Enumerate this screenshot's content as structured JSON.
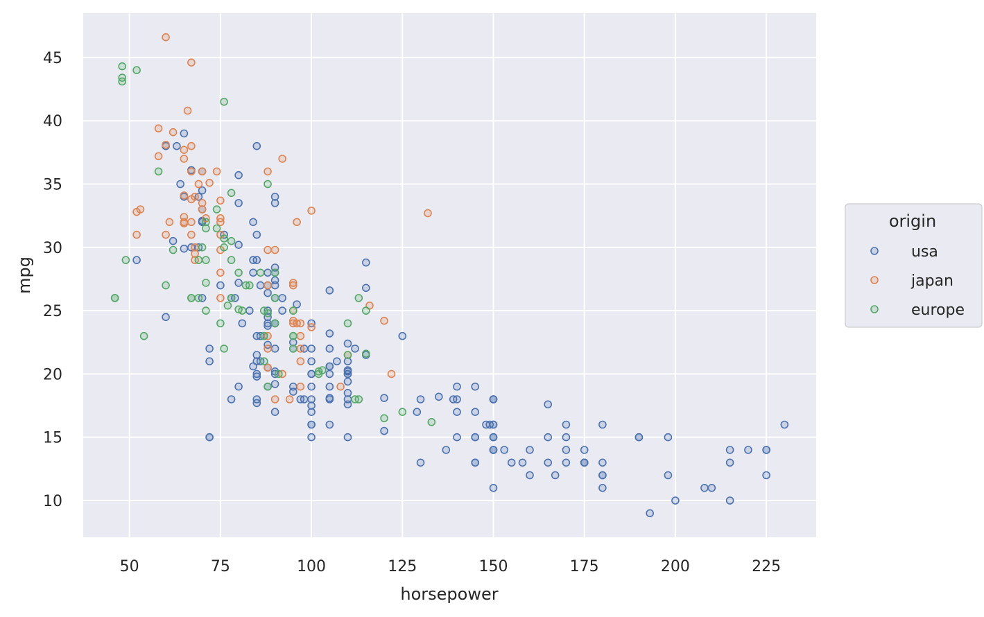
{
  "chart_data": {
    "type": "scatter",
    "xlabel": "horsepower",
    "ylabel": "mpg",
    "xlim": [
      37.3,
      238.7
    ],
    "ylim": [
      7.1,
      48.5
    ],
    "xticks": [
      50,
      75,
      100,
      125,
      150,
      175,
      200,
      225
    ],
    "yticks": [
      10,
      15,
      20,
      25,
      30,
      35,
      40,
      45
    ],
    "grid": true,
    "legend": {
      "title": "origin",
      "placement": "right"
    },
    "series": [
      {
        "name": "usa",
        "color": "#4c72b0",
        "points": [
          [
            130,
            18
          ],
          [
            165,
            15
          ],
          [
            150,
            18
          ],
          [
            150,
            16
          ],
          [
            140,
            17
          ],
          [
            198,
            15
          ],
          [
            220,
            14
          ],
          [
            215,
            14
          ],
          [
            225,
            14
          ],
          [
            190,
            15
          ],
          [
            170,
            15
          ],
          [
            160,
            14
          ],
          [
            150,
            15
          ],
          [
            225,
            14
          ],
          [
            95,
            22
          ],
          [
            97,
            18
          ],
          [
            85,
            21
          ],
          [
            88,
            27
          ],
          [
            100,
            24
          ],
          [
            105,
            20
          ],
          [
            100,
            21
          ],
          [
            88,
            24
          ],
          [
            100,
            20
          ],
          [
            165,
            13
          ],
          [
            175,
            13
          ],
          [
            153,
            14
          ],
          [
            150,
            15
          ],
          [
            180,
            13
          ],
          [
            170,
            14
          ],
          [
            175,
            13
          ],
          [
            110,
            18
          ],
          [
            72,
            21
          ],
          [
            100,
            22
          ],
          [
            88,
            19
          ],
          [
            86,
            23
          ],
          [
            90,
            28
          ],
          [
            70,
            33
          ],
          [
            76,
            31
          ],
          [
            65,
            34
          ],
          [
            69,
            34
          ],
          [
            60,
            38
          ],
          [
            90,
            24
          ],
          [
            88,
            25
          ],
          [
            90,
            24
          ],
          [
            78,
            26
          ],
          [
            98,
            22
          ],
          [
            92,
            26
          ],
          [
            88,
            28
          ],
          [
            85,
            29
          ],
          [
            145,
            13
          ],
          [
            150,
            15
          ],
          [
            193,
            9
          ],
          [
            200,
            10
          ],
          [
            230,
            16
          ],
          [
            215,
            10
          ],
          [
            210,
            11
          ],
          [
            208,
            11
          ],
          [
            198,
            12
          ],
          [
            180,
            11
          ],
          [
            167,
            12
          ],
          [
            225,
            12
          ],
          [
            215,
            13
          ],
          [
            155,
            13
          ],
          [
            150,
            14
          ],
          [
            145,
            15
          ],
          [
            130,
            13
          ],
          [
            150,
            16
          ],
          [
            140,
            15
          ],
          [
            158,
            13
          ],
          [
            170,
            16
          ],
          [
            180,
            16
          ],
          [
            149,
            16
          ],
          [
            145,
            17
          ],
          [
            139,
            18
          ],
          [
            140,
            18
          ],
          [
            145,
            19
          ],
          [
            150,
            18
          ],
          [
            140,
            19
          ],
          [
            175,
            14
          ],
          [
            150,
            14
          ],
          [
            137,
            14
          ],
          [
            129,
            17
          ],
          [
            148,
            16
          ],
          [
            150,
            14
          ],
          [
            150,
            18
          ],
          [
            190,
            15
          ],
          [
            165,
            17.6
          ],
          [
            110,
            20
          ],
          [
            105,
            19
          ],
          [
            100,
            19
          ],
          [
            100,
            18
          ],
          [
            95,
            19
          ],
          [
            90,
            20
          ],
          [
            105,
            20.6
          ],
          [
            85,
            21.5
          ],
          [
            84,
            28
          ],
          [
            90,
            26
          ],
          [
            92,
            25
          ],
          [
            90,
            27
          ],
          [
            70,
            32
          ],
          [
            63,
            38
          ],
          [
            65,
            39
          ],
          [
            70,
            34.5
          ],
          [
            80,
            33.5
          ],
          [
            84,
            32
          ],
          [
            85,
            31
          ],
          [
            90,
            28.4
          ],
          [
            90,
            27.4
          ],
          [
            96,
            25.5
          ],
          [
            88,
            26.4
          ],
          [
            110,
            20.2
          ],
          [
            110,
            17.6
          ],
          [
            115,
            26.8
          ],
          [
            115,
            28.8
          ],
          [
            105,
            26.6
          ],
          [
            110,
            18.5
          ],
          [
            105,
            18.1
          ],
          [
            120,
            15.5
          ],
          [
            145,
            15
          ],
          [
            100,
            15
          ],
          [
            100,
            16
          ],
          [
            110,
            15
          ],
          [
            90,
            17
          ],
          [
            85,
            18
          ],
          [
            80,
            19
          ],
          [
            72,
            15
          ],
          [
            72,
            15
          ],
          [
            110,
            20
          ],
          [
            125,
            23
          ],
          [
            105,
            23.2
          ],
          [
            105,
            22
          ],
          [
            70,
            36
          ],
          [
            64,
            35
          ],
          [
            69,
            30
          ],
          [
            62,
            30.5
          ],
          [
            67,
            36.1
          ],
          [
            65,
            29.9
          ],
          [
            80,
            30.2
          ],
          [
            84,
            29
          ],
          [
            88,
            23.8
          ],
          [
            90,
            19.2
          ],
          [
            85,
            17.7
          ],
          [
            100,
            17.5
          ],
          [
            115,
            21.5
          ],
          [
            110,
            22.4
          ],
          [
            110,
            20.3
          ],
          [
            105,
            16
          ],
          [
            100,
            16
          ],
          [
            90,
            22
          ],
          [
            88,
            20.5
          ],
          [
            87,
            23
          ],
          [
            86,
            21
          ],
          [
            81,
            24
          ],
          [
            83,
            25
          ],
          [
            84,
            20.6
          ],
          [
            88,
            24.5
          ],
          [
            86,
            27
          ],
          [
            90,
            33.5
          ],
          [
            90,
            34
          ],
          [
            78,
            18
          ],
          [
            112,
            22
          ],
          [
            110,
            21
          ],
          [
            105,
            20.6
          ],
          [
            85,
            20
          ],
          [
            79,
            26
          ],
          [
            75,
            27
          ],
          [
            70,
            26
          ],
          [
            107,
            21
          ],
          [
            52,
            29
          ],
          [
            60,
            24.5
          ],
          [
            72,
            22
          ],
          [
            105,
            18
          ],
          [
            100,
            20
          ],
          [
            85,
            23
          ],
          [
            95,
            22.5
          ],
          [
            80,
            35.7
          ],
          [
            85,
            38
          ],
          [
            80,
            27.2
          ],
          [
            88,
            22.3
          ],
          [
            70,
            32.1
          ],
          [
            67,
            30
          ],
          [
            90,
            20.2
          ],
          [
            85,
            19.8
          ],
          [
            95,
            18.6
          ],
          [
            110,
            19.4
          ],
          [
            135,
            18.2
          ],
          [
            120,
            18.1
          ],
          [
            100,
            17
          ],
          [
            98,
            18
          ],
          [
            180,
            12
          ],
          [
            180,
            12
          ],
          [
            170,
            13
          ],
          [
            175,
            13
          ],
          [
            150,
            11
          ],
          [
            145,
            13
          ],
          [
            160,
            12
          ]
        ]
      },
      {
        "name": "japan",
        "color": "#dd8452",
        "points": [
          [
            95,
            24
          ],
          [
            88,
            27
          ],
          [
            65,
            32
          ],
          [
            69,
            35
          ],
          [
            95,
            27
          ],
          [
            97,
            24
          ],
          [
            92,
            20
          ],
          [
            97,
            21
          ],
          [
            88,
            22
          ],
          [
            97,
            23
          ],
          [
            94,
            18
          ],
          [
            90,
            18
          ],
          [
            52,
            31
          ],
          [
            68,
            29
          ],
          [
            61,
            32
          ],
          [
            65,
            37
          ],
          [
            97,
            22
          ],
          [
            100,
            32.9
          ],
          [
            92,
            37
          ],
          [
            75,
            32
          ],
          [
            96,
            32
          ],
          [
            60,
            31
          ],
          [
            75,
            29.8
          ],
          [
            95,
            27.2
          ],
          [
            116,
            25.4
          ],
          [
            132,
            32.7
          ],
          [
            67,
            33.8
          ],
          [
            70,
            36
          ],
          [
            75,
            33.7
          ],
          [
            60,
            38.1
          ],
          [
            68,
            30
          ],
          [
            67,
            32
          ],
          [
            65,
            37.7
          ],
          [
            62,
            39.1
          ],
          [
            88,
            29.8
          ],
          [
            75,
            32.3
          ],
          [
            72,
            35.1
          ],
          [
            65,
            32.4
          ],
          [
            67,
            31
          ],
          [
            68,
            29.5
          ],
          [
            75,
            28
          ],
          [
            67,
            38
          ],
          [
            58,
            37.2
          ],
          [
            65,
            34.1
          ],
          [
            67,
            36
          ],
          [
            53,
            33
          ],
          [
            58,
            39.4
          ],
          [
            66,
            40.8
          ],
          [
            67,
            44.6
          ],
          [
            60,
            46.6
          ],
          [
            52,
            32.8
          ],
          [
            88,
            20.5
          ],
          [
            120,
            24.2
          ],
          [
            122,
            20
          ],
          [
            108,
            19
          ],
          [
            110,
            21.5
          ],
          [
            97,
            19
          ],
          [
            96,
            24
          ],
          [
            95,
            25
          ],
          [
            88,
            23
          ],
          [
            75,
            26
          ],
          [
            70,
            33.5
          ],
          [
            65,
            31.9
          ],
          [
            68,
            34
          ],
          [
            74,
            36
          ],
          [
            75,
            31
          ],
          [
            70,
            33
          ],
          [
            100,
            23.7
          ],
          [
            88,
            36
          ],
          [
            90,
            29.8
          ],
          [
            95,
            24.2
          ],
          [
            71,
            32.3
          ]
        ]
      },
      {
        "name": "europe",
        "color": "#55a868",
        "points": [
          [
            46,
            26
          ],
          [
            87,
            25
          ],
          [
            90,
            24
          ],
          [
            95,
            25
          ],
          [
            113,
            26
          ],
          [
            90,
            28
          ],
          [
            70,
            30
          ],
          [
            76,
            30
          ],
          [
            60,
            27
          ],
          [
            54,
            23
          ],
          [
            90,
            26
          ],
          [
            86,
            28
          ],
          [
            46,
            26
          ],
          [
            87,
            23
          ],
          [
            71,
            25
          ],
          [
            75,
            24
          ],
          [
            76,
            22
          ],
          [
            71,
            29
          ],
          [
            83,
            27
          ],
          [
            67,
            26
          ],
          [
            78,
            29
          ],
          [
            112,
            18
          ],
          [
            115,
            25
          ],
          [
            102,
            20
          ],
          [
            88,
            35
          ],
          [
            95,
            23
          ],
          [
            74,
            33
          ],
          [
            69,
            26
          ],
          [
            67,
            26
          ],
          [
            71,
            31.5
          ],
          [
            71,
            27.2
          ],
          [
            95,
            23
          ],
          [
            102,
            20.2
          ],
          [
            78,
            34.3
          ],
          [
            48,
            43.1
          ],
          [
            48,
            43.4
          ],
          [
            74,
            31.5
          ],
          [
            69,
            29
          ],
          [
            80,
            28
          ],
          [
            77,
            25.4
          ],
          [
            76,
            41.5
          ],
          [
            91,
            20
          ],
          [
            103,
            20.3
          ],
          [
            125,
            17
          ],
          [
            115,
            21.6
          ],
          [
            133,
            16.2
          ],
          [
            71,
            32
          ],
          [
            76,
            30.7
          ],
          [
            58,
            36
          ],
          [
            52,
            44
          ],
          [
            48,
            44.3
          ],
          [
            49,
            29
          ],
          [
            62,
            29.8
          ],
          [
            78,
            30.5
          ],
          [
            110,
            24
          ],
          [
            120,
            16.5
          ],
          [
            110,
            21.5
          ],
          [
            87,
            21
          ],
          [
            78,
            26
          ],
          [
            88,
            19
          ],
          [
            81,
            25
          ],
          [
            113,
            18
          ],
          [
            95,
            22
          ],
          [
            82,
            27
          ],
          [
            80,
            25.1
          ],
          [
            88,
            24.8
          ]
        ]
      }
    ]
  }
}
